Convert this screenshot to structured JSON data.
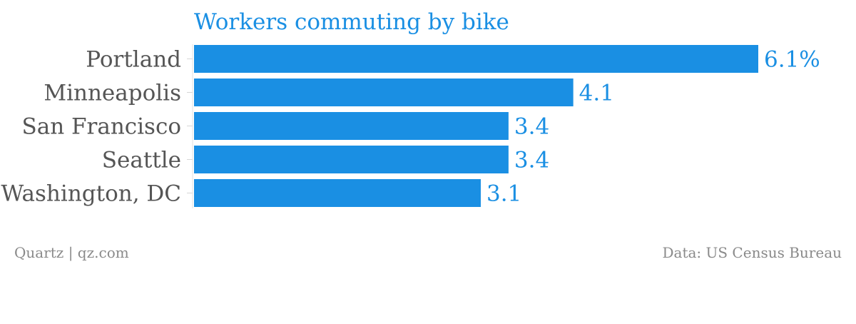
{
  "chart_data": {
    "type": "bar",
    "orientation": "horizontal",
    "title": "Workers commuting by bike",
    "categories": [
      "Portland",
      "Minneapolis",
      "San Francisco",
      "Seattle",
      "Washington, DC"
    ],
    "values": [
      6.1,
      4.1,
      3.4,
      3.4,
      3.1
    ],
    "value_labels": [
      "6.1%",
      "4.1",
      "3.4",
      "3.4",
      "3.1"
    ],
    "xlim": [
      0,
      6.1
    ],
    "grid": false,
    "legend": "none",
    "bar_color": "#1a8fe3"
  },
  "footer": {
    "left": "Quartz | qz.com",
    "right": "Data: US Census Bureau"
  }
}
